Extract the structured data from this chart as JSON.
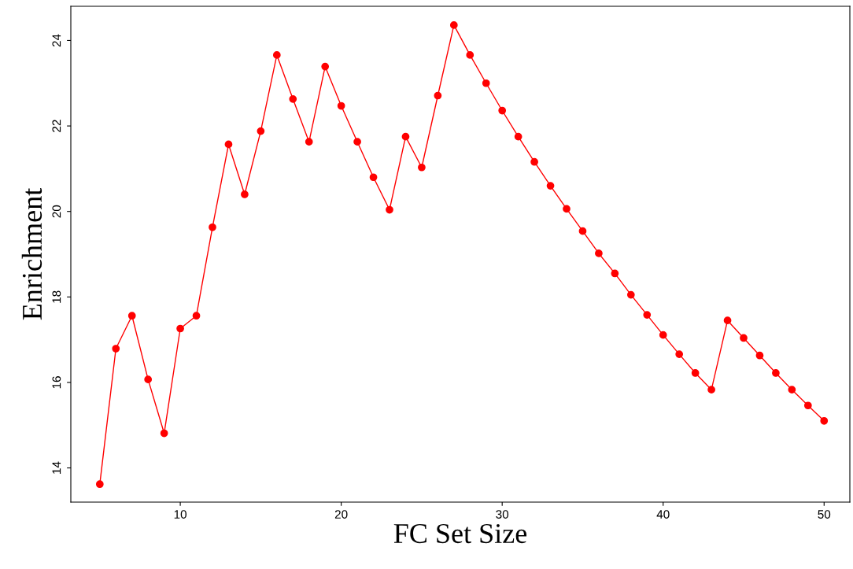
{
  "chart_data": {
    "type": "line",
    "xlabel": "FC Set Size",
    "ylabel": "Enrichment",
    "x": [
      5,
      6,
      7,
      8,
      9,
      10,
      11,
      12,
      13,
      14,
      15,
      16,
      17,
      18,
      19,
      20,
      21,
      22,
      23,
      24,
      25,
      26,
      27,
      28,
      29,
      30,
      31,
      32,
      33,
      34,
      35,
      36,
      37,
      38,
      39,
      40,
      41,
      42,
      43,
      44,
      45,
      46,
      47,
      48,
      49,
      50
    ],
    "series": [
      {
        "color": "#ff0000",
        "values": [
          13.62,
          16.79,
          17.56,
          16.07,
          14.81,
          17.26,
          17.56,
          19.63,
          21.57,
          20.4,
          21.88,
          23.66,
          22.63,
          21.63,
          23.39,
          22.47,
          21.63,
          20.8,
          20.04,
          21.75,
          21.03,
          22.71,
          24.36,
          23.66,
          23.0,
          22.36,
          21.75,
          21.16,
          20.6,
          20.06,
          19.54,
          19.02,
          18.55,
          18.05,
          17.58,
          17.11,
          16.66,
          16.22,
          15.83,
          17.45,
          17.04,
          16.63,
          16.22,
          15.83,
          15.46,
          15.1
        ]
      }
    ],
    "xlim": [
      3.2,
      51.6
    ],
    "ylim": [
      13.2,
      24.8
    ],
    "xticks": [
      10,
      20,
      30,
      40,
      50
    ],
    "yticks": [
      14,
      16,
      18,
      20,
      22,
      24
    ],
    "marker": "circle",
    "line_style": "solid",
    "grid": false,
    "legend": false
  }
}
